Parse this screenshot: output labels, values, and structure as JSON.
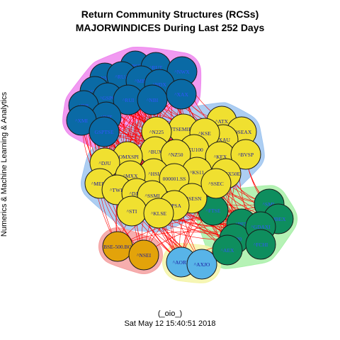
{
  "header": {
    "title_line1": "Return Community Structures (RCSs)",
    "title_line2": "MAJORWINDICES During Last 252 Days"
  },
  "side_label": "Numerics & Machine Learning & Analytics",
  "footer": {
    "line1": "(_oio_)",
    "line2": "Sat May 12 15:40:51 2018"
  },
  "colors": {
    "edge": "#ff0000",
    "blue_node": "#0a6aa5",
    "blue_label": "#3355ff",
    "yellow_node": "#f0e030",
    "yellow_label": "#1a1aa0",
    "green_node": "#0e8e5e",
    "green_label": "#3355ff",
    "orange_node": "#e3a30a",
    "orange_label": "#1a1aa0",
    "sky_node": "#58b4e8",
    "sky_label": "#1a1aa0",
    "hull_magenta": "#ee88ee",
    "hull_lightblue": "#9fc5f0",
    "hull_green": "#a8f0a8",
    "hull_salmon": "#f4a0a0",
    "hull_lightyellow": "#f4f4a8"
  },
  "communities": [
    {
      "id": "blue",
      "nodes": [
        "^PSE",
        "^RUT",
        "^NWX",
        "^NYA",
        "^RUA",
        "^MID",
        "^NDX",
        "^OEX",
        "^GSPC",
        "^RUI",
        "^NBI",
        "^XAX",
        "^DJI",
        "^DJT",
        "^XMI",
        "GSPTSE"
      ]
    },
    {
      "id": "yellow",
      "nodes": [
        "^ATX",
        "^OSEAX",
        "^XAU",
        "^FTSEMIB.MI",
        "^KSE",
        "^N225",
        "^BUX",
        "^XU100",
        "^OMXSPI",
        "^NZ50",
        "^KFX",
        "^BVSP",
        "^DJU",
        "^HSI",
        "^KS11",
        "^STOXX50E",
        "^MXX",
        "000001.SS",
        "^MERV",
        "^TWII",
        "^DJAT",
        "^SSMI",
        "^BSESN",
        "^SSEC",
        "^STI",
        "^IPSA",
        "^KLSE"
      ]
    },
    {
      "id": "green",
      "nodes": [
        "^SML",
        "^FTSE",
        "^BFX",
        "^IBEX",
        "^N100",
        "^GDAXI",
        "^FCHI",
        "^AEX"
      ]
    },
    {
      "id": "orange",
      "nodes": [
        "BSE-500.BO",
        "^NSEI"
      ]
    },
    {
      "id": "sky",
      "nodes": [
        "^AORD",
        "^AXJO"
      ]
    }
  ]
}
